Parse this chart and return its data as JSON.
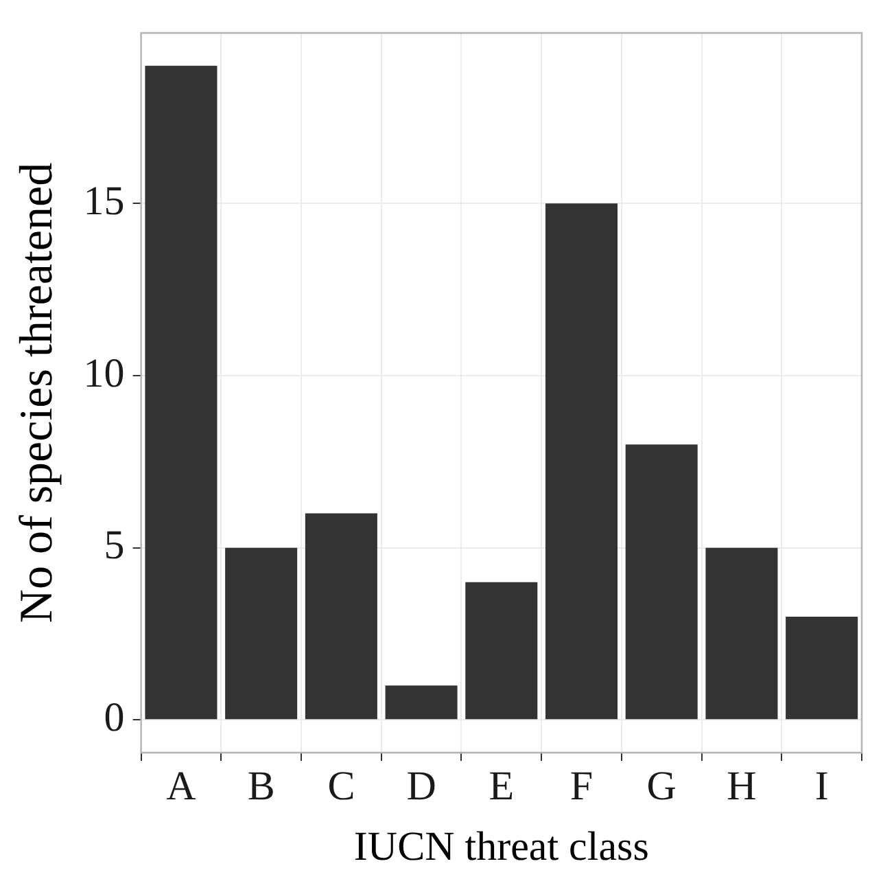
{
  "chart_data": {
    "type": "bar",
    "xlabel": "IUCN threat class",
    "ylabel": "No of species threatened",
    "categories": [
      "A",
      "B",
      "C",
      "D",
      "E",
      "F",
      "G",
      "H",
      "I"
    ],
    "values": [
      19,
      5,
      6,
      1,
      4,
      15,
      8,
      5,
      3
    ],
    "color": "#333333",
    "ylim": [
      -0.95,
      19.95
    ],
    "yticks": [
      0,
      5,
      10,
      15
    ],
    "grid": true,
    "legend": false
  }
}
